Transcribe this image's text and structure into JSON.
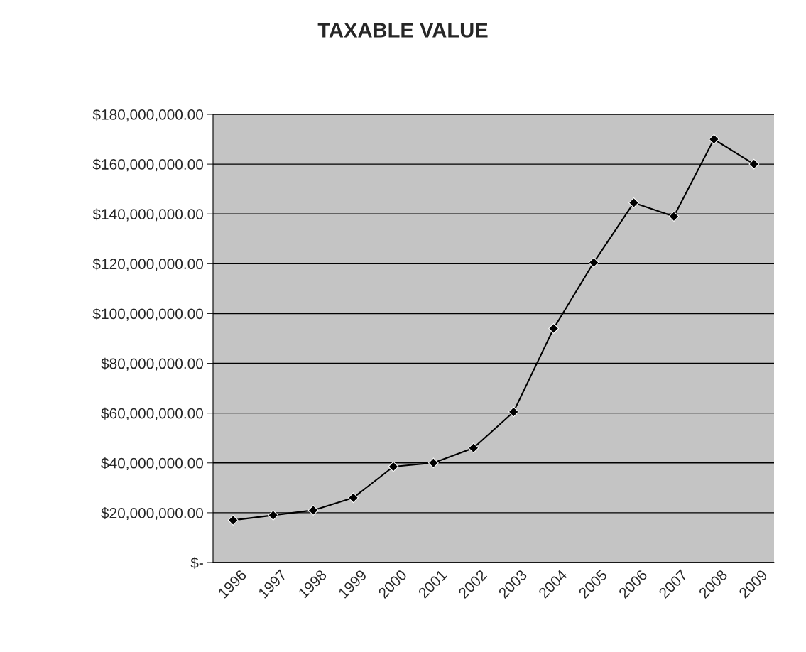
{
  "chart_data": {
    "type": "line",
    "title": "TAXABLE VALUE",
    "categories": [
      "1996",
      "1997",
      "1998",
      "1999",
      "2000",
      "2001",
      "2002",
      "2003",
      "2004",
      "2005",
      "2006",
      "2007",
      "2008",
      "2009"
    ],
    "series": [
      {
        "color": "#000000",
        "values": [
          17000000,
          19000000,
          21000000,
          26000000,
          38500000,
          40000000,
          46000000,
          60500000,
          94000000,
          120500000,
          144500000,
          139000000,
          170000000,
          160000000
        ]
      }
    ],
    "ylim": [
      0,
      180000000
    ],
    "yticks": [
      {
        "value": 0,
        "label": "$-"
      },
      {
        "value": 20000000,
        "label": "$20,000,000.00"
      },
      {
        "value": 40000000,
        "label": "$40,000,000.00"
      },
      {
        "value": 60000000,
        "label": "$60,000,000.00"
      },
      {
        "value": 80000000,
        "label": "$80,000,000.00"
      },
      {
        "value": 100000000,
        "label": "$100,000,000.00"
      },
      {
        "value": 120000000,
        "label": "$120,000,000.00"
      },
      {
        "value": 140000000,
        "label": "$140,000,000.00"
      },
      {
        "value": 160000000,
        "label": "$160,000,000.00"
      },
      {
        "value": 180000000,
        "label": "$180,000,000.00"
      }
    ],
    "grid": "y",
    "marker": "diamond",
    "line_style": "solid",
    "legend": false
  }
}
